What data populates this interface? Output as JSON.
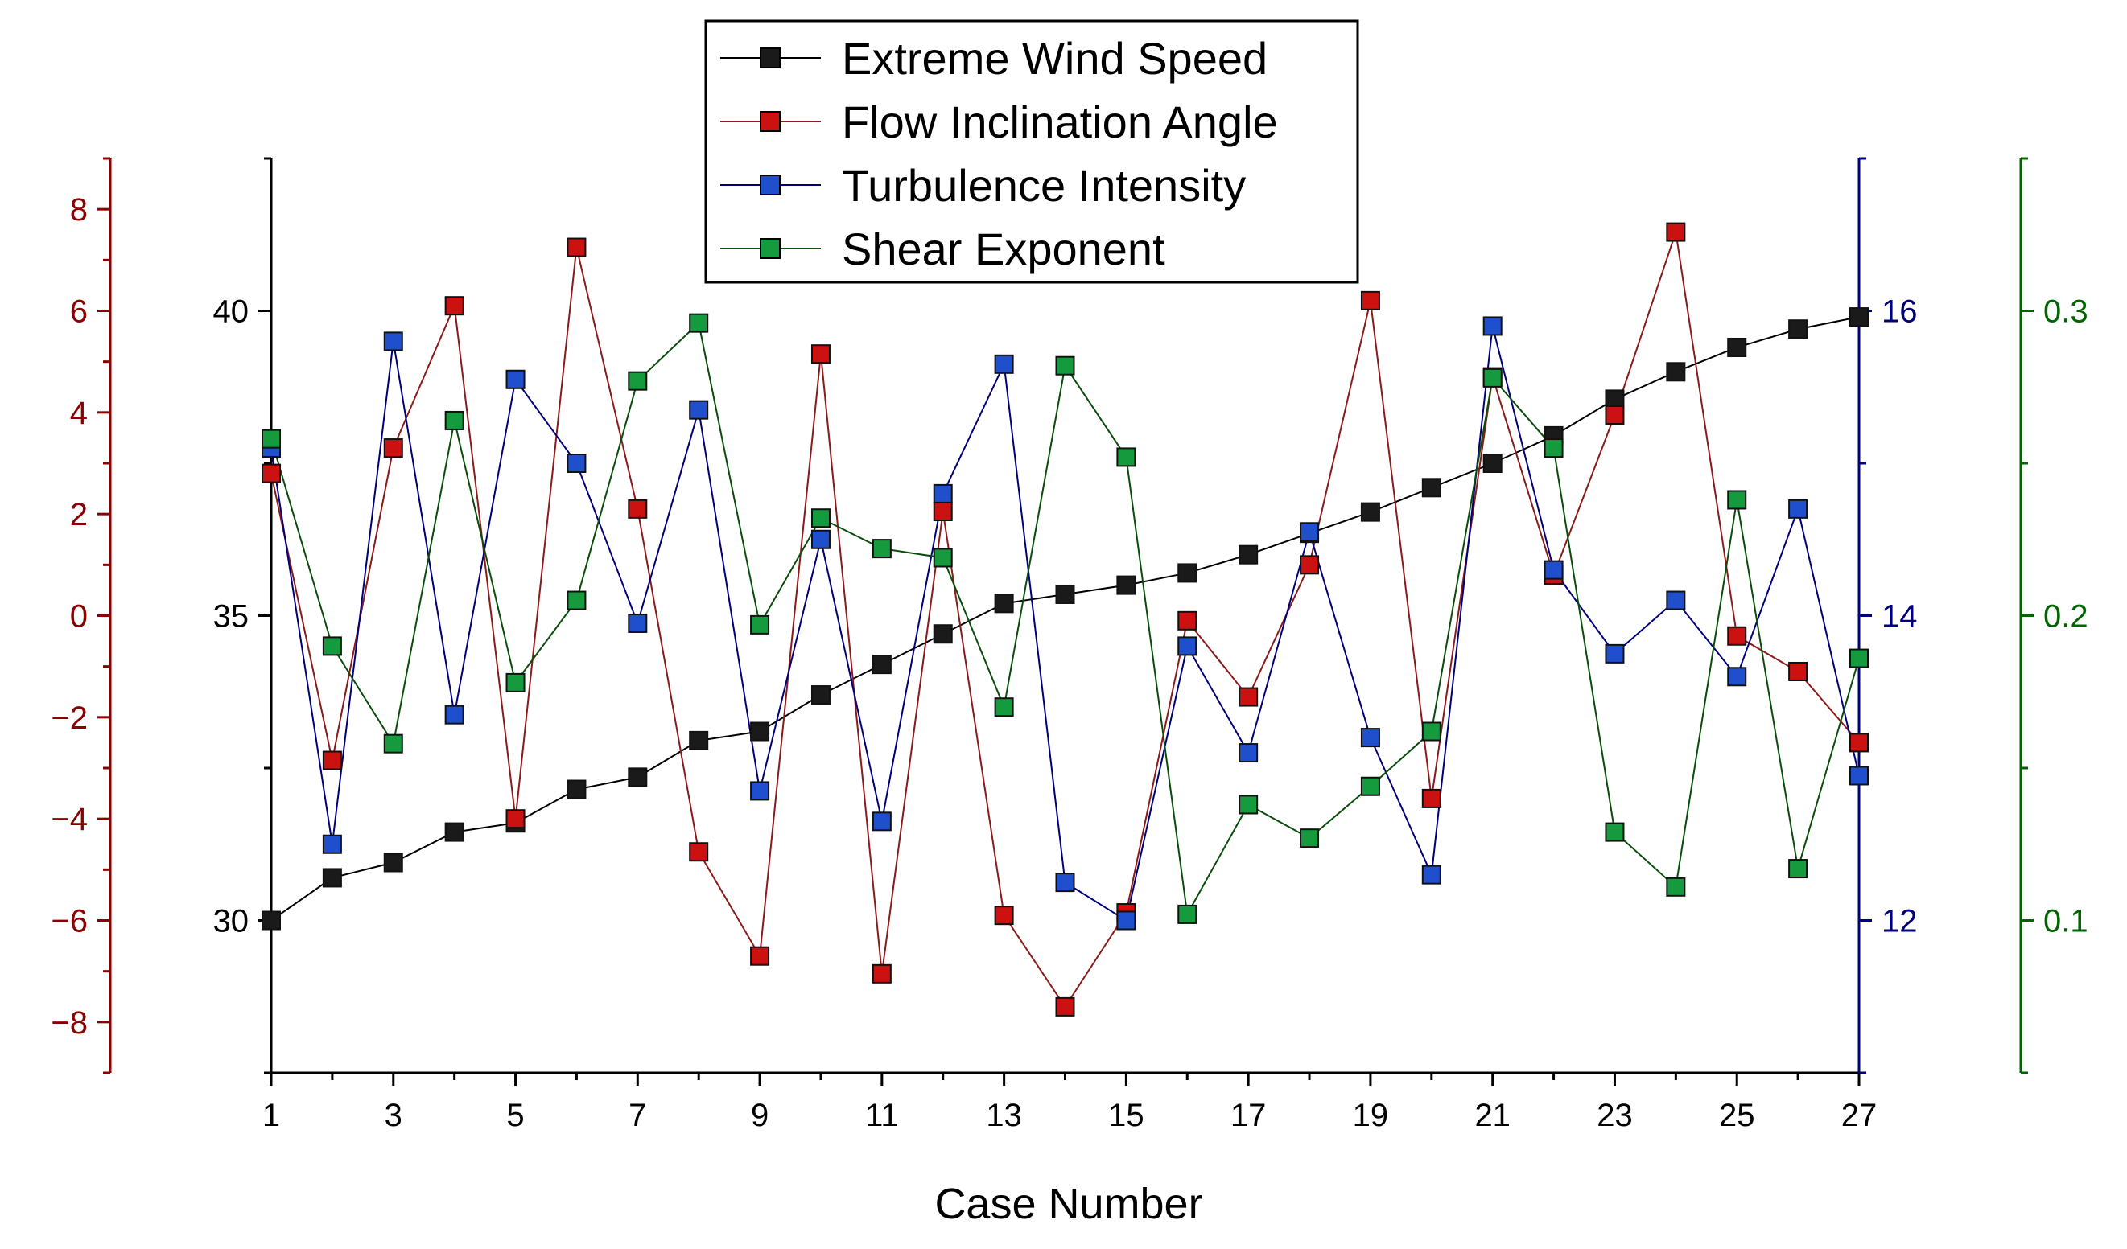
{
  "chart_data": {
    "type": "line",
    "title": "",
    "xlabel": "Case Number",
    "x": [
      1,
      2,
      3,
      4,
      5,
      6,
      7,
      8,
      9,
      10,
      11,
      12,
      13,
      14,
      15,
      16,
      17,
      18,
      19,
      20,
      21,
      22,
      23,
      24,
      25,
      26,
      27
    ],
    "x_ticks": [
      1,
      3,
      5,
      7,
      9,
      11,
      13,
      15,
      17,
      19,
      21,
      23,
      25,
      27
    ],
    "xlim": [
      1,
      27
    ],
    "grid": false,
    "legend_position": "top-center",
    "axes": {
      "black": {
        "color": "#000000",
        "side": "left-inner",
        "ylim": [
          27.5,
          42.5
        ],
        "ticks": [
          30,
          35,
          40
        ],
        "tick_labels": [
          "30",
          "35",
          "40"
        ]
      },
      "red": {
        "color": "#8b0000",
        "side": "left-outer",
        "ylim": [
          -9,
          9
        ],
        "ticks": [
          -8,
          -6,
          -4,
          -2,
          0,
          2,
          4,
          6,
          8
        ],
        "tick_labels": [
          "−8",
          "−6",
          "−4",
          "−2",
          "0",
          "2",
          "4",
          "6",
          "8"
        ]
      },
      "navy": {
        "color": "#00007a",
        "side": "right-inner",
        "ylim": [
          11,
          17
        ],
        "ticks": [
          12,
          14,
          16
        ],
        "tick_labels": [
          "12",
          "14",
          "16"
        ]
      },
      "green": {
        "color": "#006400",
        "side": "right-outer",
        "ylim": [
          0.05,
          0.35
        ],
        "ticks": [
          0.1,
          0.2,
          0.3
        ],
        "tick_labels": [
          "0.1",
          "0.2",
          "0.3"
        ]
      }
    },
    "series": [
      {
        "name": "Extreme Wind Speed",
        "axis": "black",
        "line_color": "#000000",
        "marker_color": "#1a1a1a",
        "values": [
          30.0,
          30.7,
          30.95,
          31.45,
          31.6,
          32.15,
          32.35,
          32.95,
          33.1,
          33.7,
          34.2,
          34.7,
          35.2,
          35.35,
          35.5,
          35.7,
          36.0,
          36.35,
          36.7,
          37.1,
          37.5,
          37.95,
          38.55,
          39.0,
          39.4,
          39.7,
          39.9
        ]
      },
      {
        "name": "Flow Inclination Angle",
        "axis": "red",
        "line_color": "#8b1a1a",
        "marker_color": "#cc1111",
        "values": [
          2.8,
          -2.85,
          3.3,
          6.1,
          -4.0,
          7.25,
          2.1,
          -4.65,
          -6.7,
          5.15,
          -7.05,
          2.05,
          -5.9,
          -7.7,
          -5.85,
          -0.1,
          -1.6,
          1.0,
          6.2,
          -3.6,
          4.7,
          0.8,
          3.95,
          7.55,
          -0.4,
          -1.1,
          -2.5
        ]
      },
      {
        "name": "Turbulence Intensity",
        "axis": "navy",
        "line_color": "#00007a",
        "marker_color": "#1f4fcc",
        "values": [
          15.1,
          12.5,
          15.8,
          13.35,
          15.55,
          15.0,
          13.95,
          15.35,
          12.85,
          14.5,
          12.65,
          14.8,
          15.65,
          12.25,
          12.0,
          13.8,
          13.1,
          14.55,
          13.2,
          12.3,
          15.9,
          14.3,
          13.75,
          14.1,
          13.6,
          14.7,
          12.95
        ]
      },
      {
        "name": "Shear Exponent",
        "axis": "green",
        "line_color": "#0a4d0a",
        "marker_color": "#169a3e",
        "values": [
          0.258,
          0.19,
          0.158,
          0.264,
          0.178,
          0.205,
          0.277,
          0.296,
          0.197,
          0.232,
          0.222,
          0.219,
          0.17,
          0.282,
          0.252,
          0.102,
          0.138,
          0.127,
          0.144,
          0.162,
          0.278,
          0.255,
          0.129,
          0.111,
          0.238,
          0.117,
          0.186
        ]
      }
    ]
  }
}
